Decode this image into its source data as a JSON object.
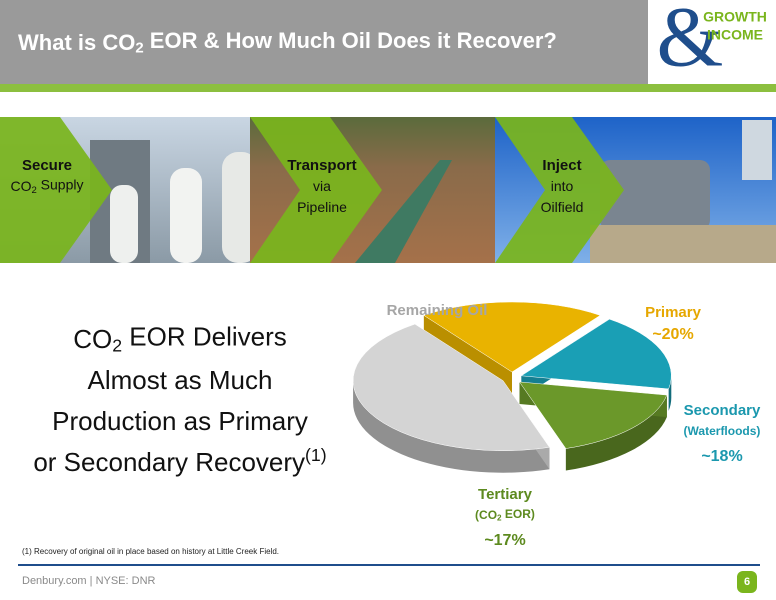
{
  "header": {
    "title": [
      "What is CO",
      "2",
      " EOR & How Much Oil Does it Recover?"
    ],
    "logo": {
      "mark": "&",
      "lines": [
        "GROWTH",
        "INCOME"
      ]
    }
  },
  "steps": [
    {
      "title": "Secure",
      "lines": [
        [
          "CO",
          "2",
          " Supply"
        ]
      ]
    },
    {
      "title": "Transport",
      "lines": [
        [
          "via"
        ],
        [
          "Pipeline"
        ]
      ]
    },
    {
      "title": "Inject",
      "lines": [
        [
          "into"
        ],
        [
          "Oilfield"
        ]
      ]
    }
  ],
  "headline": [
    [
      "CO",
      "2",
      " EOR Delivers"
    ],
    [
      "Almost as Much"
    ],
    [
      "Production as Primary"
    ],
    [
      "or Secondary Recovery",
      "(1)"
    ]
  ],
  "chart_data": {
    "type": "pie",
    "categories": [
      "Remaining Oil",
      "Primary",
      "Secondary",
      "Tertiary"
    ],
    "subtitles": [
      null,
      null,
      [
        "(Waterfloods)"
      ],
      [
        "(CO",
        "2",
        " EOR)"
      ]
    ],
    "values": [
      45,
      20,
      18,
      17
    ],
    "value_labels": [
      null,
      "~20%",
      "~18%",
      "~17%"
    ],
    "colors": [
      "#d4d4d4",
      "#e9b300",
      "#1a9fb5",
      "#6b982a"
    ],
    "label_colors": [
      "#a6a6a6",
      "#e6a700",
      "#1b98ae",
      "#5d8a1f"
    ]
  },
  "footnote": "(1) Recovery of original oil in place based on history at Little Creek Field.",
  "footer": {
    "text": "Denbury.com | NYSE: DNR",
    "page": "6"
  }
}
